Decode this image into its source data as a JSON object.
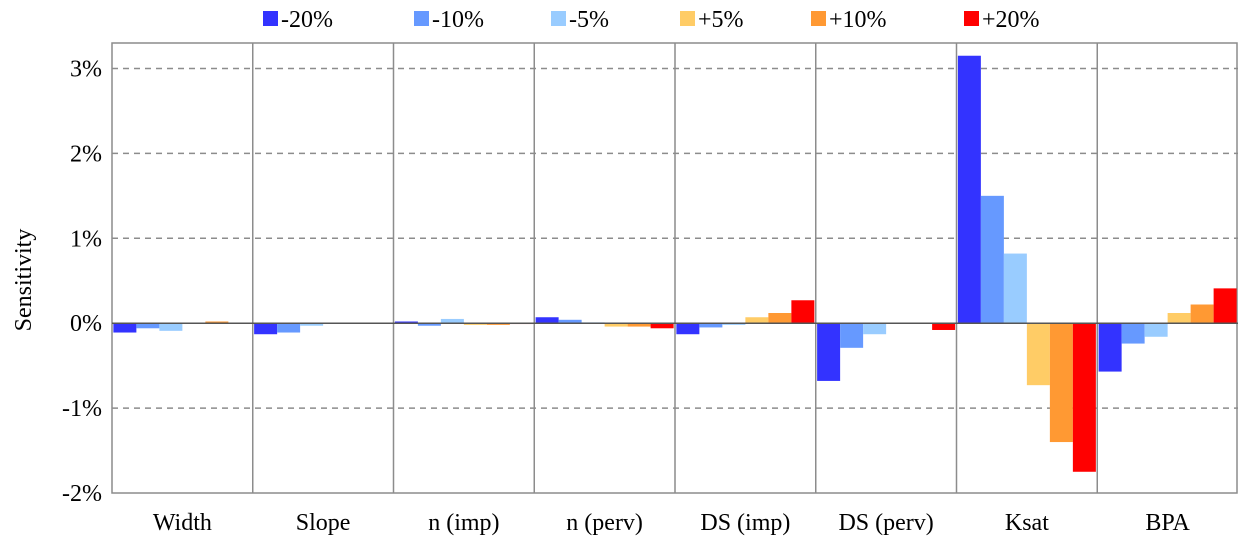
{
  "chart_data": {
    "type": "bar",
    "title": "",
    "xlabel": "",
    "ylabel": "Sensitivity",
    "ylim": [
      -2,
      3.3
    ],
    "yticks": [
      {
        "value": 3,
        "label": "3%"
      },
      {
        "value": 2,
        "label": "2%"
      },
      {
        "value": 1,
        "label": "1%"
      },
      {
        "value": 0,
        "label": "0%"
      },
      {
        "value": -1,
        "label": "-1%"
      },
      {
        "value": -2,
        "label": "-2%"
      }
    ],
    "grid": "horizontal dashed",
    "legend_position": "top",
    "categories": [
      "Width",
      "Slope",
      "n (imp)",
      "n (perv)",
      "DS (imp)",
      "DS (perv)",
      "Ksat",
      "BPA"
    ],
    "series": [
      {
        "name": "-20%",
        "color": "#3333ff",
        "values": [
          -0.11,
          -0.13,
          0.02,
          0.07,
          -0.13,
          -0.68,
          3.15,
          -0.57
        ]
      },
      {
        "name": "-10%",
        "color": "#6699ff",
        "values": [
          -0.06,
          -0.11,
          -0.03,
          0.04,
          -0.05,
          -0.29,
          1.5,
          -0.24
        ]
      },
      {
        "name": "-5%",
        "color": "#99ccff",
        "values": [
          -0.09,
          -0.03,
          0.05,
          0.01,
          -0.02,
          -0.13,
          0.82,
          -0.16
        ]
      },
      {
        "name": "+5%",
        "color": "#ffcc66",
        "values": [
          0.0,
          0.0,
          -0.02,
          -0.04,
          0.07,
          0.0,
          -0.73,
          0.12
        ]
      },
      {
        "name": "+10%",
        "color": "#ff9933",
        "values": [
          0.02,
          0.0,
          -0.02,
          -0.04,
          0.12,
          0.0,
          -1.4,
          0.22
        ]
      },
      {
        "name": "+20%",
        "color": "#ff0000",
        "values": [
          0.0,
          0.0,
          -0.01,
          -0.06,
          0.27,
          -0.08,
          -1.75,
          0.41
        ]
      }
    ]
  }
}
